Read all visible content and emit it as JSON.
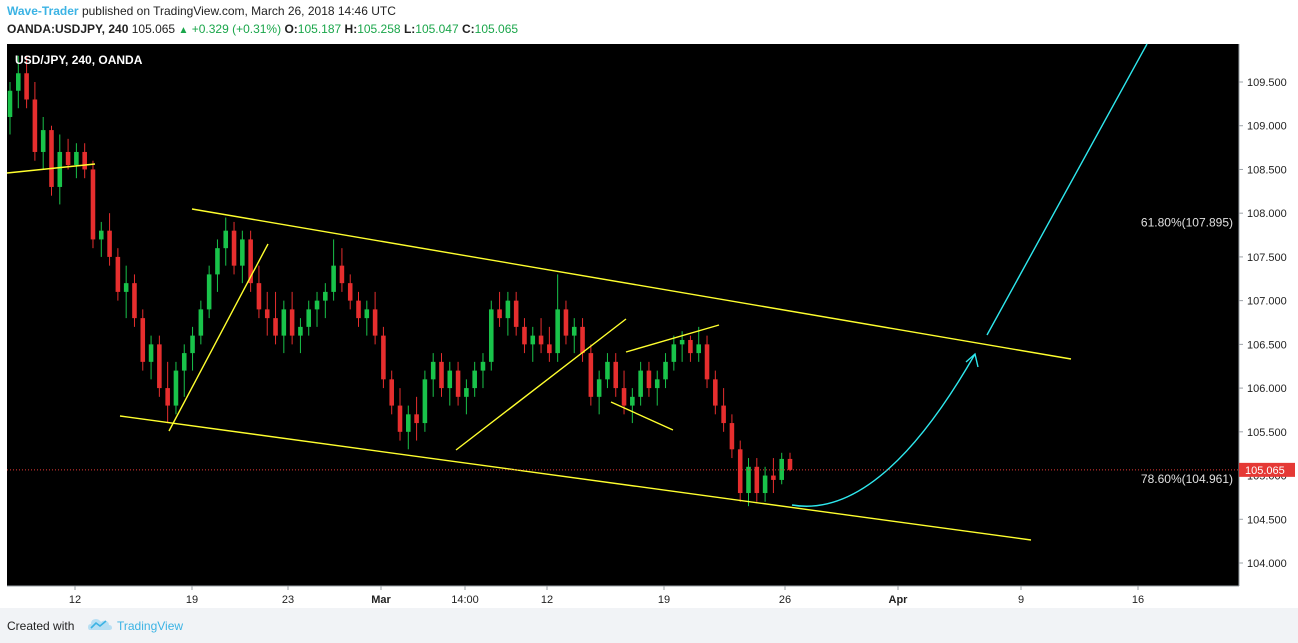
{
  "header": {
    "author": "Wave-Trader",
    "published_text": "published on TradingView.com, March 26, 2018 14:46 UTC",
    "symbol_line": "OANDA:USDJPY, 240",
    "last": "105.065",
    "change": "+0.329 (+0.31%)",
    "o_label": "O:",
    "o": "105.187",
    "h_label": "H:",
    "h": "105.258",
    "l_label": "L:",
    "l": "105.047",
    "c_label": "C:",
    "c": "105.065"
  },
  "chart_data": {
    "type": "candlestick",
    "title": "USD/JPY, 240, OANDA",
    "y_ticks": [
      "104.000",
      "104.500",
      "105.000",
      "105.500",
      "106.000",
      "106.500",
      "107.000",
      "107.500",
      "108.000",
      "108.500",
      "109.000",
      "109.500"
    ],
    "ylim": [
      103.8,
      110.0
    ],
    "x_ticks": [
      "12",
      "19",
      "23",
      "Mar",
      "14:00",
      "12",
      "19",
      "26",
      "Apr",
      "9",
      "16"
    ],
    "current_price": "105.065",
    "fib_labels": [
      {
        "text": "61.80%(107.895)",
        "value": 107.895
      },
      {
        "text": "78.60%(104.961)",
        "value": 104.961
      }
    ],
    "candles": [
      [
        109.1,
        109.5,
        108.9,
        109.4
      ],
      [
        109.4,
        109.8,
        109.2,
        109.6
      ],
      [
        109.6,
        109.8,
        109.2,
        109.3
      ],
      [
        109.3,
        109.5,
        108.6,
        108.7
      ],
      [
        108.7,
        109.1,
        108.5,
        108.95
      ],
      [
        108.95,
        109.0,
        108.2,
        108.3
      ],
      [
        108.3,
        108.9,
        108.1,
        108.7
      ],
      [
        108.7,
        108.85,
        108.5,
        108.55
      ],
      [
        108.55,
        108.8,
        108.4,
        108.7
      ],
      [
        108.7,
        108.8,
        108.4,
        108.5
      ],
      [
        108.5,
        108.6,
        107.6,
        107.7
      ],
      [
        107.7,
        107.9,
        107.5,
        107.8
      ],
      [
        107.8,
        108.0,
        107.4,
        107.5
      ],
      [
        107.5,
        107.6,
        107.0,
        107.1
      ],
      [
        107.1,
        107.4,
        106.8,
        107.2
      ],
      [
        107.2,
        107.3,
        106.7,
        106.8
      ],
      [
        106.8,
        106.9,
        106.2,
        106.3
      ],
      [
        106.3,
        106.6,
        106.1,
        106.5
      ],
      [
        106.5,
        106.6,
        105.9,
        106.0
      ],
      [
        106.0,
        106.3,
        105.6,
        105.8
      ],
      [
        105.8,
        106.3,
        105.7,
        106.2
      ],
      [
        106.2,
        106.5,
        105.9,
        106.4
      ],
      [
        106.4,
        106.7,
        106.2,
        106.6
      ],
      [
        106.6,
        107.0,
        106.5,
        106.9
      ],
      [
        106.9,
        107.4,
        106.8,
        107.3
      ],
      [
        107.3,
        107.7,
        107.1,
        107.6
      ],
      [
        107.6,
        107.95,
        107.4,
        107.8
      ],
      [
        107.8,
        107.9,
        107.3,
        107.4
      ],
      [
        107.4,
        107.8,
        107.2,
        107.7
      ],
      [
        107.7,
        107.8,
        107.1,
        107.2
      ],
      [
        107.2,
        107.4,
        106.8,
        106.9
      ],
      [
        106.9,
        107.1,
        106.6,
        106.8
      ],
      [
        106.8,
        107.1,
        106.5,
        106.6
      ],
      [
        106.6,
        107.0,
        106.4,
        106.9
      ],
      [
        106.9,
        107.1,
        106.5,
        106.6
      ],
      [
        106.6,
        106.8,
        106.4,
        106.7
      ],
      [
        106.7,
        107.0,
        106.6,
        106.9
      ],
      [
        106.9,
        107.1,
        106.7,
        107.0
      ],
      [
        107.0,
        107.2,
        106.8,
        107.1
      ],
      [
        107.1,
        107.7,
        107.0,
        107.4
      ],
      [
        107.4,
        107.6,
        107.1,
        107.2
      ],
      [
        107.2,
        107.3,
        106.9,
        107.0
      ],
      [
        107.0,
        107.1,
        106.7,
        106.8
      ],
      [
        106.8,
        107.0,
        106.6,
        106.9
      ],
      [
        106.9,
        107.1,
        106.5,
        106.6
      ],
      [
        106.6,
        106.7,
        106.0,
        106.1
      ],
      [
        106.1,
        106.2,
        105.7,
        105.8
      ],
      [
        105.8,
        106.0,
        105.4,
        105.5
      ],
      [
        105.5,
        105.8,
        105.3,
        105.7
      ],
      [
        105.7,
        105.9,
        105.4,
        105.6
      ],
      [
        105.6,
        106.2,
        105.5,
        106.1
      ],
      [
        106.1,
        106.4,
        105.9,
        106.3
      ],
      [
        106.3,
        106.4,
        105.9,
        106.0
      ],
      [
        106.0,
        106.3,
        105.8,
        106.2
      ],
      [
        106.2,
        106.3,
        105.8,
        105.9
      ],
      [
        105.9,
        106.1,
        105.7,
        106.0
      ],
      [
        106.0,
        106.3,
        105.9,
        106.2
      ],
      [
        106.2,
        106.4,
        106.0,
        106.3
      ],
      [
        106.3,
        107.0,
        106.2,
        106.9
      ],
      [
        106.9,
        107.1,
        106.7,
        106.8
      ],
      [
        106.8,
        107.1,
        106.6,
        107.0
      ],
      [
        107.0,
        107.1,
        106.6,
        106.7
      ],
      [
        106.7,
        106.8,
        106.4,
        106.5
      ],
      [
        106.5,
        106.7,
        106.3,
        106.6
      ],
      [
        106.6,
        106.8,
        106.4,
        106.5
      ],
      [
        106.5,
        106.7,
        106.3,
        106.4
      ],
      [
        106.4,
        107.3,
        106.3,
        106.9
      ],
      [
        106.9,
        107.0,
        106.5,
        106.6
      ],
      [
        106.6,
        106.8,
        106.4,
        106.7
      ],
      [
        106.7,
        106.8,
        106.3,
        106.4
      ],
      [
        106.4,
        106.5,
        105.8,
        105.9
      ],
      [
        105.9,
        106.2,
        105.7,
        106.1
      ],
      [
        106.1,
        106.4,
        106.0,
        106.3
      ],
      [
        106.3,
        106.4,
        105.9,
        106.0
      ],
      [
        106.0,
        106.2,
        105.7,
        105.8
      ],
      [
        105.8,
        106.0,
        105.6,
        105.9
      ],
      [
        105.9,
        106.3,
        105.8,
        106.2
      ],
      [
        106.2,
        106.3,
        105.9,
        106.0
      ],
      [
        106.0,
        106.2,
        105.8,
        106.1
      ],
      [
        106.1,
        106.4,
        106.0,
        106.3
      ],
      [
        106.3,
        106.6,
        106.2,
        106.5
      ],
      [
        106.5,
        106.65,
        106.3,
        106.55
      ],
      [
        106.55,
        106.6,
        106.3,
        106.4
      ],
      [
        106.4,
        106.7,
        106.3,
        106.5
      ],
      [
        106.5,
        106.6,
        106.0,
        106.1
      ],
      [
        106.1,
        106.2,
        105.7,
        105.8
      ],
      [
        105.8,
        106.0,
        105.5,
        105.6
      ],
      [
        105.6,
        105.7,
        105.2,
        105.3
      ],
      [
        105.3,
        105.4,
        104.7,
        104.8
      ],
      [
        104.8,
        105.2,
        104.65,
        105.1
      ],
      [
        105.1,
        105.2,
        104.7,
        104.8
      ],
      [
        104.8,
        105.1,
        104.7,
        105.0
      ],
      [
        105.0,
        105.2,
        104.8,
        104.95
      ],
      [
        104.95,
        105.26,
        104.9,
        105.19
      ],
      [
        105.19,
        105.26,
        105.05,
        105.065
      ]
    ]
  },
  "footer": {
    "created_with": "Created with",
    "brand": "TradingView"
  }
}
